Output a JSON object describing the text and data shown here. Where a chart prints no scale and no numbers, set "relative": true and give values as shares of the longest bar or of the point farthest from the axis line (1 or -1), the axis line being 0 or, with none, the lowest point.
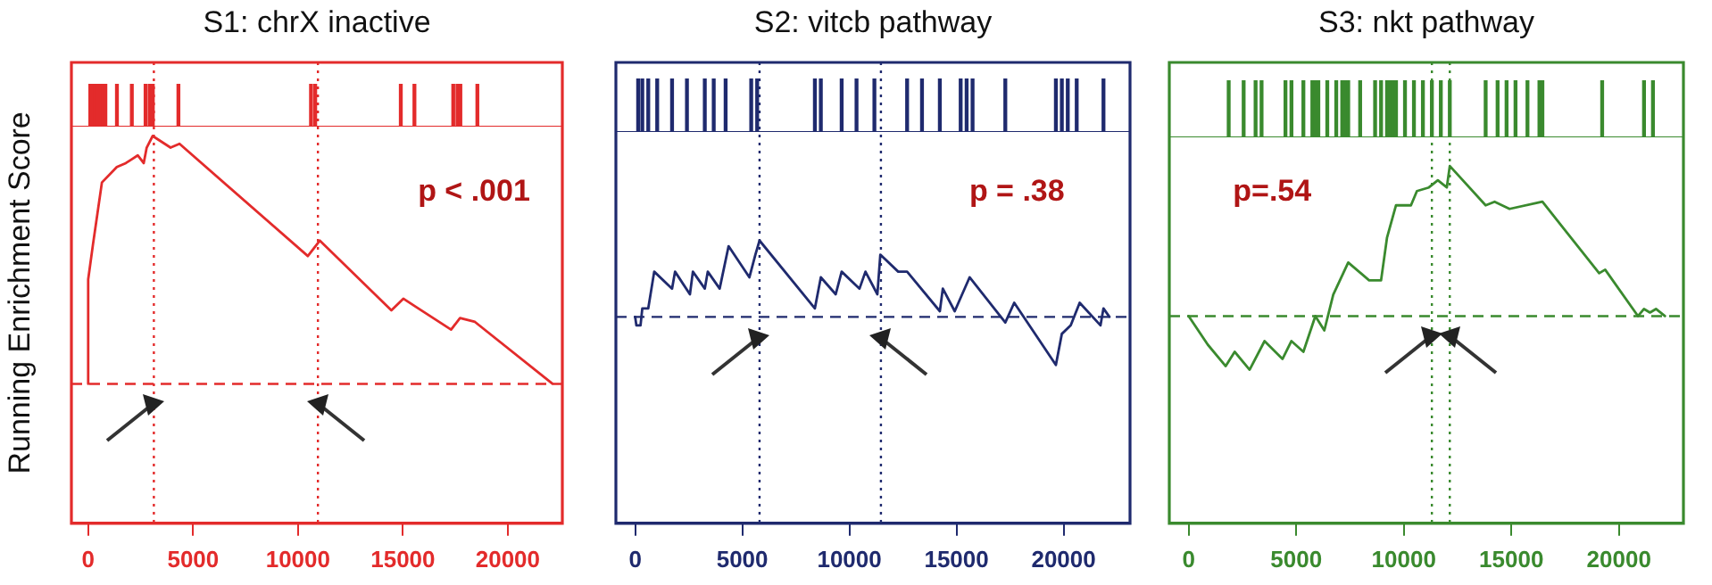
{
  "chart_data": [
    {
      "type": "bar",
      "title": "S1: chrX inactive",
      "relative": true,
      "xlim": [
        -800,
        22600
      ],
      "tick_labels": false,
      "legend": false,
      "color": "#e32b2b",
      "x": [
        100,
        220,
        340,
        460,
        580,
        700,
        820,
        1370,
        2080,
        2735,
        2930,
        3080,
        4300,
        10620,
        10820,
        14900,
        15550,
        17400,
        17600,
        17740,
        18550
      ],
      "values": [
        1,
        1,
        1,
        1,
        1,
        1,
        1,
        1,
        1,
        1,
        1,
        1,
        1,
        1,
        1,
        1,
        1,
        1,
        1,
        1,
        1
      ]
    },
    {
      "type": "line",
      "ylabel": "Running Enrichment Score",
      "relative": true,
      "xlim": [
        -800,
        22600
      ],
      "xticks": [
        0,
        5000,
        10000,
        15000,
        20000
      ],
      "grid": false,
      "legend": false,
      "marker": "none",
      "annotations": [
        "p < .001"
      ],
      "ref_lines": [
        {
          "axis": "y",
          "value": 0.36,
          "line_style": "dashed"
        },
        {
          "axis": "x",
          "value": 3130,
          "line_style": "dotted"
        },
        {
          "axis": "x",
          "value": 10950,
          "line_style": "dotted"
        }
      ],
      "series": [
        {
          "color": "#e32b2b",
          "x": [
            0,
            0,
            228,
            654,
            1366,
            1792,
            2077,
            2361,
            2646,
            2788,
            3073,
            3926,
            4353,
            10469,
            11038,
            14452,
            15021,
            15590,
            17297,
            17724,
            18435,
            22134
          ],
          "values": [
            0.36,
            0.63,
            0.72,
            0.88,
            0.92,
            0.93,
            0.94,
            0.95,
            0.93,
            0.97,
            1,
            0.97,
            0.98,
            0.69,
            0.73,
            0.55,
            0.58,
            0.56,
            0.5,
            0.53,
            0.52,
            0.36
          ]
        }
      ]
    },
    {
      "type": "bar",
      "title": "S2: vitcb pathway",
      "relative": true,
      "xlim": [
        -900,
        23100
      ],
      "tick_labels": false,
      "legend": false,
      "color": "#1f2a6e",
      "x": [
        139,
        333,
        611,
        1028,
        1722,
        2417,
        3250,
        3667,
        4222,
        5417,
        5694,
        8389,
        8667,
        9639,
        10333,
        11167,
        12694,
        13389,
        14222,
        15194,
        15472,
        15750,
        17278,
        19639,
        19917,
        20194,
        20611,
        21861
      ],
      "values": [
        1,
        1,
        1,
        1,
        1,
        1,
        1,
        1,
        1,
        1,
        1,
        1,
        1,
        1,
        1,
        1,
        1,
        1,
        1,
        1,
        1,
        1,
        1,
        1,
        1,
        1,
        1,
        1
      ]
    },
    {
      "type": "line",
      "relative": true,
      "xlim": [
        -900,
        23100
      ],
      "xticks": [
        0,
        5000,
        10000,
        15000,
        20000
      ],
      "grid": false,
      "legend": false,
      "marker": "none",
      "annotations": [
        "p = .38"
      ],
      "ref_lines": [
        {
          "axis": "y",
          "value": 0.73,
          "line_style": "dashed"
        },
        {
          "axis": "x",
          "value": 5806,
          "line_style": "dotted"
        },
        {
          "axis": "x",
          "value": 11472,
          "line_style": "dotted"
        }
      ],
      "series": [
        {
          "color": "#1f2a6e",
          "x": [
            0,
            56,
            250,
            333,
            611,
            889,
            1722,
            1861,
            2556,
            2694,
            3250,
            3389,
            3944,
            4361,
            5333,
            5611,
            5806,
            8389,
            8667,
            9361,
            9639,
            10472,
            10750,
            11306,
            11444,
            12278,
            12694,
            14222,
            14361,
            14917,
            15611,
            17278,
            17694,
            19639,
            19917,
            20333,
            20750,
            21722,
            21861,
            22139
          ],
          "values": [
            0.73,
            0.7,
            0.7,
            0.76,
            0.76,
            0.89,
            0.83,
            0.89,
            0.81,
            0.89,
            0.83,
            0.89,
            0.83,
            0.98,
            0.87,
            0.95,
            1,
            0.76,
            0.87,
            0.81,
            0.89,
            0.83,
            0.89,
            0.81,
            0.95,
            0.89,
            0.89,
            0.75,
            0.83,
            0.75,
            0.87,
            0.71,
            0.78,
            0.56,
            0.67,
            0.7,
            0.78,
            0.7,
            0.76,
            0.73
          ]
        }
      ]
    },
    {
      "type": "bar",
      "title": "S3: nkt pathway",
      "relative": true,
      "xlim": [
        -900,
        23000
      ],
      "tick_labels": false,
      "legend": false,
      "color": "#3a8a2e",
      "x": [
        1861,
        2556,
        3111,
        3389,
        4500,
        4778,
        5333,
        5750,
        5889,
        6028,
        6444,
        6861,
        7139,
        7278,
        7417,
        7972,
        8667,
        8944,
        9222,
        9361,
        9500,
        9639,
        10056,
        10472,
        10889,
        11306,
        11722,
        12139,
        13806,
        14361,
        14778,
        15194,
        15750,
        16306,
        16444,
        19222,
        21167,
        21583
      ],
      "values": [
        1,
        1,
        1,
        1,
        1,
        1,
        1,
        1,
        1,
        1,
        1,
        1,
        1,
        1,
        1,
        1,
        1,
        1,
        1,
        1,
        1,
        1,
        1,
        1,
        1,
        1,
        1,
        1,
        1,
        1,
        1,
        1,
        1,
        1,
        1,
        1,
        1,
        1
      ]
    },
    {
      "type": "line",
      "relative": true,
      "xlim": [
        -900,
        23000
      ],
      "xticks": [
        0,
        5000,
        10000,
        15000,
        20000
      ],
      "grid": false,
      "legend": false,
      "marker": "none",
      "annotations": [
        "p=.54"
      ],
      "ref_lines": [
        {
          "axis": "y",
          "value": 0.58,
          "line_style": "dashed"
        },
        {
          "axis": "x",
          "value": 11306,
          "line_style": "dotted"
        },
        {
          "axis": "x",
          "value": 12139,
          "line_style": "dotted"
        }
      ],
      "series": [
        {
          "color": "#3a8a2e",
          "x": [
            0,
            889,
            1722,
            2139,
            2833,
            3528,
            4361,
            4778,
            5333,
            5889,
            6306,
            6722,
            7417,
            8389,
            8944,
            9222,
            9639,
            10333,
            10611,
            11167,
            11583,
            12000,
            12139,
            13806,
            14222,
            14917,
            16444,
            19083,
            19361,
            20889,
            21167,
            21444,
            21722,
            22139
          ],
          "values": [
            0.58,
            0.5,
            0.44,
            0.48,
            0.43,
            0.51,
            0.46,
            0.51,
            0.48,
            0.58,
            0.54,
            0.64,
            0.73,
            0.68,
            0.68,
            0.8,
            0.89,
            0.89,
            0.93,
            0.94,
            0.96,
            0.94,
            1,
            0.89,
            0.9,
            0.88,
            0.9,
            0.7,
            0.71,
            0.58,
            0.6,
            0.59,
            0.6,
            0.58
          ]
        }
      ]
    }
  ]
}
